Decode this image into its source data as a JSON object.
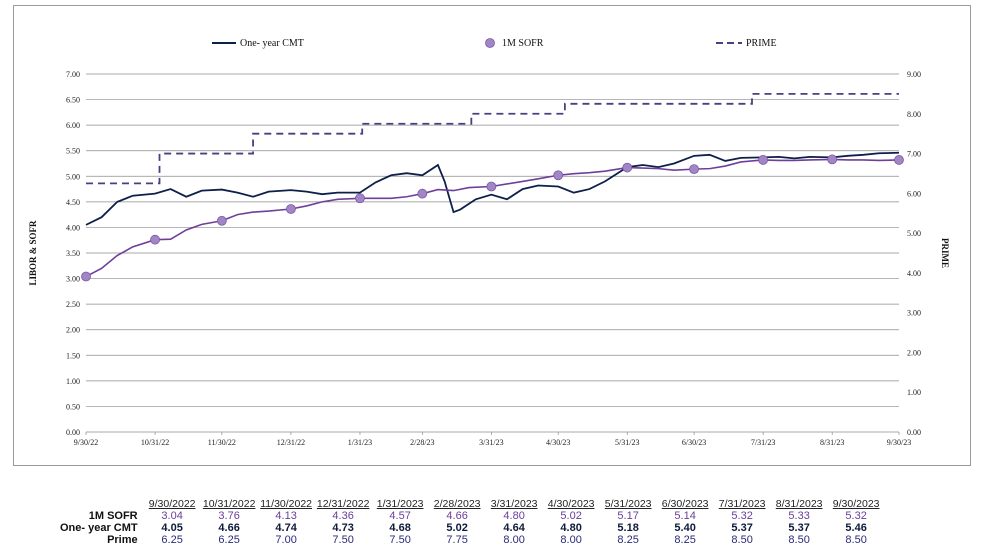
{
  "colors": {
    "cmt": "#0d1f4a",
    "sofr": "#6e3f9a",
    "sofr_marker": "#a285c4",
    "prime": "#4b3f82",
    "grid": "#8c8c8c"
  },
  "legend": {
    "cmt": "One- year CMT",
    "sofr": "1M SOFR",
    "prime": "PRIME"
  },
  "axes": {
    "left_title": "LIBOR & SOFR",
    "right_title": "PRIME"
  },
  "chart_data": {
    "type": "line",
    "title": "",
    "xlabel": "",
    "ylabel": "LIBOR & SOFR",
    "ylabel_right": "PRIME",
    "ylim": [
      0,
      7
    ],
    "ylim_right": [
      0,
      9
    ],
    "yticks_left": [
      "0.00",
      "0.50",
      "1.00",
      "1.50",
      "2.00",
      "2.50",
      "3.00",
      "3.50",
      "4.00",
      "4.50",
      "5.00",
      "5.50",
      "6.00",
      "6.50",
      "7.00"
    ],
    "yticks_right": [
      "0.00",
      "1.00",
      "2.00",
      "3.00",
      "4.00",
      "5.00",
      "6.00",
      "7.00",
      "8.00",
      "9.00"
    ],
    "x_ticks": [
      "9/30/22",
      "10/31/22",
      "11/30/22",
      "12/31/22",
      "1/31/23",
      "2/28/23",
      "3/31/23",
      "4/30/23",
      "5/31/23",
      "6/30/23",
      "7/31/23",
      "8/31/23",
      "9/30/23"
    ],
    "grid": true,
    "legend_position": "top",
    "series": [
      {
        "name": "One- year CMT",
        "axis": "left",
        "style": "solid",
        "x": [
          "9/30/22",
          "10/7/22",
          "10/14/22",
          "10/21/22",
          "10/31/22",
          "11/7/22",
          "11/14/22",
          "11/21/22",
          "11/30/22",
          "12/7/22",
          "12/14/22",
          "12/21/22",
          "12/31/22",
          "1/7/23",
          "1/14/23",
          "1/21/23",
          "1/31/23",
          "2/7/23",
          "2/14/23",
          "2/21/23",
          "2/28/23",
          "3/7/23",
          "3/10/23",
          "3/14/23",
          "3/17/23",
          "3/24/23",
          "3/31/23",
          "4/7/23",
          "4/14/23",
          "4/21/23",
          "4/30/23",
          "5/7/23",
          "5/14/23",
          "5/21/23",
          "5/31/23",
          "6/7/23",
          "6/14/23",
          "6/21/23",
          "6/30/23",
          "7/7/23",
          "7/14/23",
          "7/21/23",
          "7/31/23",
          "8/7/23",
          "8/14/23",
          "8/21/23",
          "8/31/23",
          "9/7/23",
          "9/14/23",
          "9/21/23",
          "9/30/23"
        ],
        "values": [
          4.05,
          4.2,
          4.5,
          4.62,
          4.66,
          4.75,
          4.6,
          4.72,
          4.74,
          4.68,
          4.6,
          4.7,
          4.73,
          4.7,
          4.65,
          4.68,
          4.68,
          4.88,
          5.02,
          5.06,
          5.02,
          5.22,
          4.9,
          4.3,
          4.35,
          4.55,
          4.64,
          4.55,
          4.75,
          4.82,
          4.8,
          4.68,
          4.75,
          4.9,
          5.18,
          5.22,
          5.18,
          5.25,
          5.4,
          5.42,
          5.3,
          5.36,
          5.37,
          5.38,
          5.35,
          5.38,
          5.37,
          5.4,
          5.42,
          5.45,
          5.46
        ]
      },
      {
        "name": "1M SOFR",
        "axis": "left",
        "style": "solid-markers",
        "x": [
          "9/30/22",
          "10/7/22",
          "10/14/22",
          "10/21/22",
          "10/31/22",
          "11/7/22",
          "11/14/22",
          "11/21/22",
          "11/30/22",
          "12/7/22",
          "12/14/22",
          "12/21/22",
          "12/31/22",
          "1/7/23",
          "1/14/23",
          "1/21/23",
          "1/31/23",
          "2/7/23",
          "2/14/23",
          "2/21/23",
          "2/28/23",
          "3/7/23",
          "3/14/23",
          "3/21/23",
          "3/31/23",
          "4/7/23",
          "4/14/23",
          "4/21/23",
          "4/30/23",
          "5/7/23",
          "5/14/23",
          "5/21/23",
          "5/31/23",
          "6/7/23",
          "6/14/23",
          "6/21/23",
          "6/30/23",
          "7/7/23",
          "7/14/23",
          "7/21/23",
          "7/31/23",
          "8/7/23",
          "8/14/23",
          "8/21/23",
          "8/31/23",
          "9/7/23",
          "9/14/23",
          "9/21/23",
          "9/30/23"
        ],
        "values": [
          3.04,
          3.2,
          3.45,
          3.62,
          3.76,
          3.77,
          3.95,
          4.06,
          4.13,
          4.25,
          4.3,
          4.32,
          4.36,
          4.42,
          4.5,
          4.55,
          4.57,
          4.57,
          4.57,
          4.6,
          4.66,
          4.74,
          4.72,
          4.78,
          4.8,
          4.85,
          4.9,
          4.95,
          5.02,
          5.05,
          5.07,
          5.1,
          5.17,
          5.16,
          5.15,
          5.12,
          5.14,
          5.15,
          5.2,
          5.28,
          5.32,
          5.31,
          5.31,
          5.32,
          5.33,
          5.32,
          5.32,
          5.31,
          5.32
        ],
        "markers_at": [
          "9/30/22",
          "10/31/22",
          "11/30/22",
          "12/31/22",
          "1/31/23",
          "2/28/23",
          "3/31/23",
          "4/30/23",
          "5/31/23",
          "6/30/23",
          "7/31/23",
          "8/31/23",
          "9/30/23"
        ]
      },
      {
        "name": "PRIME",
        "axis": "right",
        "style": "dashed-step",
        "x": [
          "9/30/22",
          "11/2/22",
          "12/14/22",
          "2/1/23",
          "3/22/23",
          "5/3/23",
          "7/26/23",
          "9/30/23"
        ],
        "values": [
          6.25,
          7.0,
          7.5,
          7.75,
          8.0,
          8.25,
          8.5,
          8.5
        ]
      }
    ]
  },
  "table": {
    "headers": [
      "9/30/2022",
      "10/31/2022",
      "11/30/2022",
      "12/31/2022",
      "1/31/2023",
      "2/28/2023",
      "3/31/2023",
      "4/30/2023",
      "5/31/2023",
      "6/30/2023",
      "7/31/2023",
      "8/31/2023",
      "9/30/2023"
    ],
    "rows": [
      {
        "label": "1M SOFR",
        "values": [
          "3.04",
          "3.76",
          "4.13",
          "4.36",
          "4.57",
          "4.66",
          "4.80",
          "5.02",
          "5.17",
          "5.14",
          "5.32",
          "5.33",
          "5.32"
        ]
      },
      {
        "label": "One- year CMT",
        "values": [
          "4.05",
          "4.66",
          "4.74",
          "4.73",
          "4.68",
          "5.02",
          "4.64",
          "4.80",
          "5.18",
          "5.40",
          "5.37",
          "5.37",
          "5.46"
        ]
      },
      {
        "label": "Prime",
        "values": [
          "6.25",
          "6.25",
          "7.00",
          "7.50",
          "7.50",
          "7.75",
          "8.00",
          "8.00",
          "8.25",
          "8.25",
          "8.50",
          "8.50",
          "8.50"
        ]
      }
    ]
  }
}
